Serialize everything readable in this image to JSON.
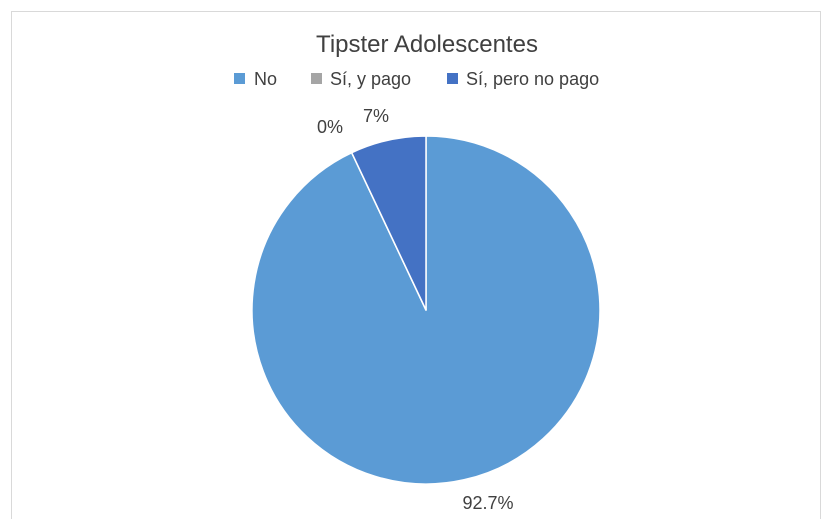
{
  "chart_data": {
    "type": "pie",
    "title": "Tipster Adolescentes",
    "categories": [
      "No",
      "Sí, y pago",
      "Sí, pero no pago"
    ],
    "values": [
      92.7,
      0,
      7
    ],
    "data_labels": [
      "92.7%",
      "0%",
      "7%"
    ],
    "colors": [
      "#5b9bd5",
      "#a5a5a5",
      "#4472c4"
    ],
    "legend_position": "top",
    "start_angle_deg": 0,
    "direction": "clockwise"
  }
}
